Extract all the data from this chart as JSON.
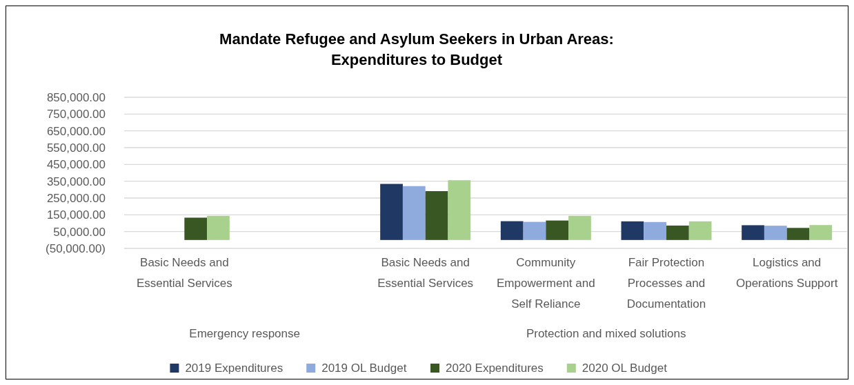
{
  "chart_data": {
    "type": "bar",
    "title": "Mandate Refugee and Asylum Seekers in Urban Areas: Expenditures to Budget",
    "categories": [
      "Basic Needs and Essential Services",
      null,
      "Basic Needs and Essential Services",
      "Community Empowerment and Self Reliance",
      "Fair Protection Processes and Documentation",
      "Logistics and Operations Support"
    ],
    "series": [
      {
        "name": "2019 Expenditures",
        "color": "#203864",
        "values": [
          null,
          null,
          334000,
          112000,
          111000,
          88000
        ]
      },
      {
        "name": "2019 OL Budget",
        "color": "#8faadc",
        "values": [
          null,
          null,
          321000,
          108000,
          107000,
          85000
        ]
      },
      {
        "name": "2020 Expenditures",
        "color": "#385723",
        "values": [
          133000,
          null,
          291000,
          116000,
          86000,
          72000
        ]
      },
      {
        "name": "2020 OL Budget",
        "color": "#a9d18e",
        "values": [
          144000,
          null,
          356000,
          144000,
          111000,
          89000
        ]
      }
    ],
    "ylim": [
      -50000,
      850000
    ],
    "yticks": [
      {
        "value": -50000,
        "label": "(50,000.00)"
      },
      {
        "value": 50000,
        "label": "50,000.00"
      },
      {
        "value": 150000,
        "label": "150,000.00"
      },
      {
        "value": 250000,
        "label": "250,000.00"
      },
      {
        "value": 350000,
        "label": "350,000.00"
      },
      {
        "value": 450000,
        "label": "450,000.00"
      },
      {
        "value": 550000,
        "label": "550,000.00"
      },
      {
        "value": 650000,
        "label": "650,000.00"
      },
      {
        "value": 750000,
        "label": "750,000.00"
      },
      {
        "value": 850000,
        "label": "850,000.00"
      }
    ],
    "grid": "y",
    "legend": "bottom",
    "annotations": [
      "Emergency response",
      "Protection and mixed solutions"
    ]
  }
}
